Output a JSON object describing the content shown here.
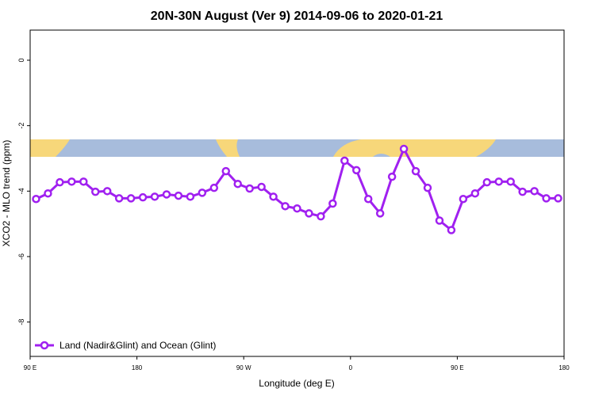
{
  "chart_data": {
    "type": "line",
    "title": "20N-30N August (Ver 9)   2014-09-06 to 2020-01-21",
    "x_label": "Longitude (deg E)",
    "y_label": "XCO2 - MLO trend (ppm)",
    "x": [
      95,
      105,
      115,
      125,
      135,
      145,
      155,
      165,
      175,
      185,
      195,
      205,
      215,
      225,
      235,
      245,
      255,
      265,
      275,
      285,
      295,
      305,
      315,
      325,
      335,
      345,
      355,
      365,
      375,
      385,
      395,
      405,
      415,
      425,
      435,
      445,
      455,
      465,
      475,
      485,
      495,
      505,
      515,
      525,
      535
    ],
    "series": [
      {
        "name": "Land (Nadir&Glint) and Ocean (Glint)",
        "color": "#a020f0",
        "values": [
          -4.24,
          -4.07,
          -3.73,
          -3.71,
          -3.71,
          -4.02,
          -4.0,
          -4.22,
          -4.22,
          -4.19,
          -4.17,
          -4.1,
          -4.14,
          -4.17,
          -4.05,
          -3.9,
          -3.39,
          -3.78,
          -3.92,
          -3.87,
          -4.17,
          -4.46,
          -4.53,
          -4.68,
          -4.77,
          -4.38,
          -3.07,
          -3.36,
          -4.24,
          -4.68,
          -3.56,
          -2.71,
          -3.39,
          -3.9,
          -4.9,
          -5.19,
          -4.24,
          -4.07,
          -3.73,
          -3.71,
          -3.71,
          -4.02,
          -4.0,
          -4.22,
          -4.22
        ]
      }
    ],
    "xlim": [
      90,
      540
    ],
    "xticks": [
      {
        "value": 90,
        "label": "90 E"
      },
      {
        "value": 180,
        "label": "180"
      },
      {
        "value": 270,
        "label": "90 W"
      },
      {
        "value": 360,
        "label": "0"
      },
      {
        "value": 450,
        "label": "90 E"
      },
      {
        "value": 540,
        "label": "180"
      }
    ],
    "ylim": [
      -9.05,
      0.92
    ],
    "yticks": [
      0,
      -2,
      -4,
      -6,
      -8
    ],
    "legend": "bottom-left"
  }
}
